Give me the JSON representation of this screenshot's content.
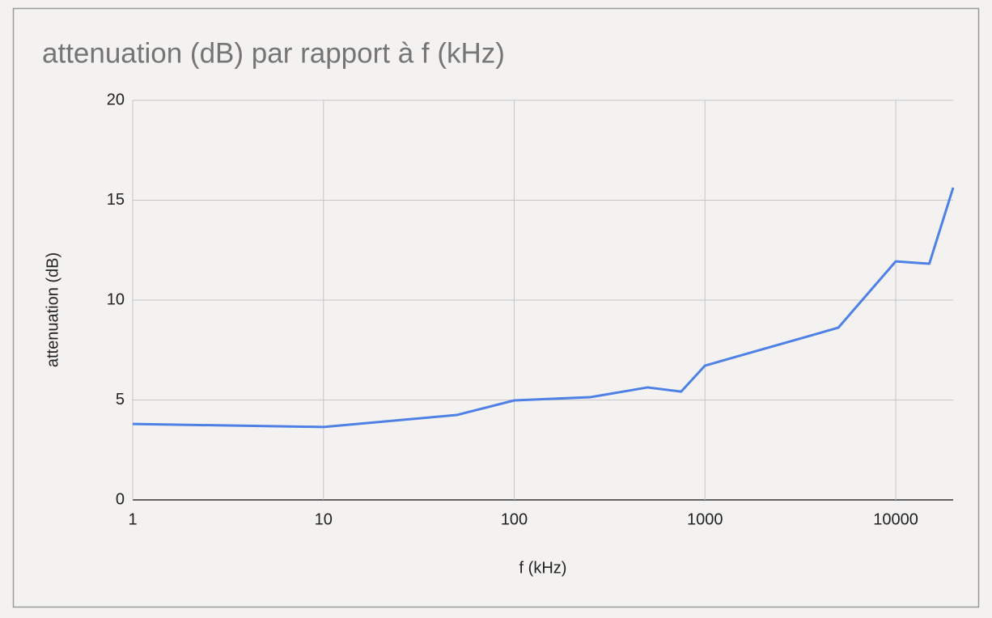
{
  "chart_data": {
    "type": "line",
    "title": "attenuation (dB) par rapport à f (kHz)",
    "x_label": "f (kHz)",
    "y_label": "attenuation (dB)",
    "x": [
      1,
      10,
      50,
      100,
      250,
      500,
      750,
      1000,
      5000,
      10000,
      15000,
      20000
    ],
    "series": [
      {
        "name": "attenuation (dB)",
        "color": "#4e80e6",
        "values": [
          3.8,
          3.65,
          4.25,
          4.98,
          5.14,
          5.63,
          5.42,
          6.72,
          8.62,
          11.94,
          11.82,
          15.63
        ]
      }
    ],
    "xscale": "log",
    "xlim": [
      1,
      20000
    ],
    "xticks": [
      1,
      10,
      100,
      1000,
      10000
    ],
    "ylim": [
      0,
      20
    ],
    "yticks": [
      0,
      5,
      10,
      15,
      20
    ],
    "grid": true
  }
}
